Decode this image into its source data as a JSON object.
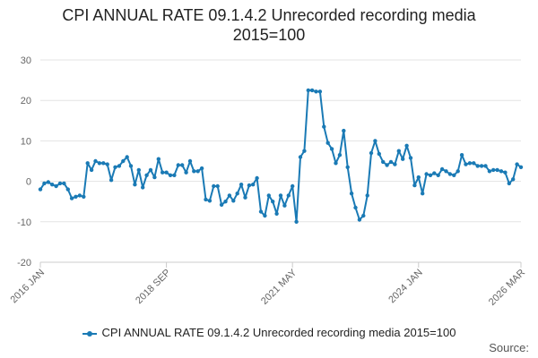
{
  "chart_data": {
    "type": "line",
    "title": "CPI ANNUAL RATE 09.1.4.2 Unrecorded recording media\n2015=100",
    "xlabel": "",
    "ylabel": "",
    "ylim": [
      -20,
      30
    ],
    "yticks": [
      "30",
      "20",
      "10",
      "0",
      "-10",
      "-20"
    ],
    "ytick_values": [
      30,
      20,
      10,
      0,
      -10,
      -20
    ],
    "xticks": [
      "2016 JAN",
      "2018 SEP",
      "2021 MAY",
      "2024 JAN",
      "2026 MAR"
    ],
    "xtick_index": [
      0,
      32,
      64,
      96,
      122
    ],
    "grid": true,
    "color": "#1a7ab5",
    "series": [
      {
        "name": "CPI ANNUAL RATE 09.1.4.2 Unrecorded recording media 2015=100",
        "values": [
          -2.0,
          -0.5,
          -0.2,
          -0.8,
          -1.2,
          -0.5,
          -0.5,
          -2.0,
          -4.2,
          -3.8,
          -3.5,
          -3.8,
          4.5,
          2.8,
          5.0,
          4.5,
          4.5,
          4.2,
          0.3,
          3.5,
          3.8,
          5.0,
          6.0,
          3.8,
          -0.8,
          2.8,
          -1.5,
          1.5,
          2.8,
          1.0,
          5.5,
          2.2,
          2.2,
          1.5,
          1.5,
          4.0,
          4.0,
          2.2,
          5.0,
          2.5,
          2.5,
          3.2,
          -4.5,
          -4.8,
          -1.2,
          -1.2,
          -5.8,
          -5.0,
          -3.5,
          -4.8,
          -3.0,
          -0.8,
          -4.0,
          -1.0,
          -0.8,
          0.8,
          -7.5,
          -8.5,
          -3.5,
          -5.0,
          -8.0,
          -3.5,
          -6.0,
          -3.5,
          -1.2,
          -10.0,
          6.0,
          7.5,
          22.5,
          22.5,
          22.2,
          22.2,
          13.5,
          9.5,
          8.0,
          4.5,
          6.5,
          12.5,
          3.5,
          -3.0,
          -6.5,
          -9.5,
          -8.5,
          -3.5,
          7.0,
          10.0,
          6.8,
          4.8,
          4.0,
          4.8,
          4.2,
          7.5,
          5.5,
          8.8,
          5.8,
          -1.0,
          1.0,
          -3.0,
          1.8,
          1.5,
          2.0,
          1.5,
          3.0,
          2.5,
          1.8,
          1.5,
          2.5,
          6.5,
          4.2,
          4.5,
          4.5,
          3.8,
          3.8,
          3.8,
          2.5,
          2.8,
          2.8,
          2.5,
          2.2,
          -0.5,
          0.5,
          4.2,
          3.5
        ]
      }
    ]
  },
  "legend": {
    "label": "CPI ANNUAL RATE 09.1.4.2 Unrecorded recording media 2015=100"
  },
  "footer": {
    "source_label": "Source:"
  }
}
